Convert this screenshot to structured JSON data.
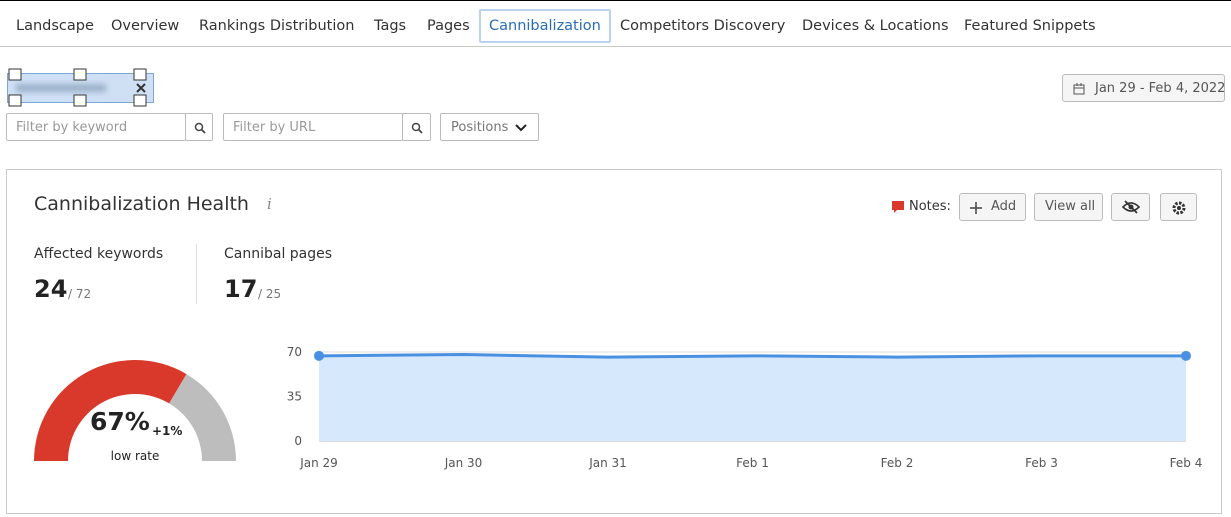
{
  "tabs": [
    "Landscape",
    "Overview",
    "Rankings Distribution",
    "Tags",
    "Pages",
    "Cannibalization",
    "Competitors Discovery",
    "Devices & Locations",
    "Featured Snippets"
  ],
  "date_range": "Jan 29 - Feb 4, 2022",
  "filters": {
    "keyword": "Filter by keyword",
    "url": "Filter by URL",
    "positions": "Positions"
  },
  "card": {
    "title": "Cannibalization Health",
    "info": "i",
    "notes_label": "Notes:",
    "add": "Add",
    "view_all": "View all",
    "stats": [
      {
        "label": "Affected keywords",
        "value": 24,
        "total": "/ 72"
      },
      {
        "label": "Cannibal pages",
        "value": 17,
        "total": "/ 25"
      }
    ]
  },
  "gauge": {
    "value": 67,
    "label": "67%",
    "change": "+1%",
    "caption": "low rate"
  },
  "chart_data": {
    "type": "area",
    "categories": [
      "Jan 29",
      "Jan 30",
      "Jan 31",
      "Feb 1",
      "Feb 2",
      "Feb 3",
      "Feb 4"
    ],
    "values": [
      67,
      68,
      66,
      67,
      66,
      67,
      67
    ],
    "color": "#4a90e2",
    "fill": "#d6e8fb",
    "ylim": [
      0,
      70
    ],
    "yticks": [
      0,
      35,
      70
    ],
    "grid": true
  }
}
